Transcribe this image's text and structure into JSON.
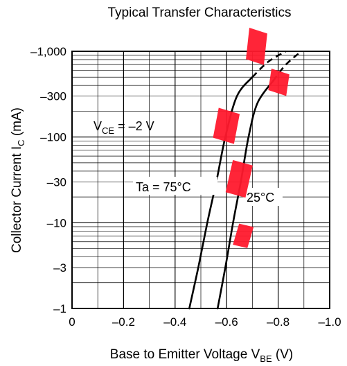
{
  "chart_data": {
    "type": "line",
    "title": "Typical Transfer Characteristics",
    "xlabel": {
      "main": "Base to Emitter Voltage  V",
      "sub": "BE",
      "unit": "  (V)"
    },
    "ylabel": {
      "main": "Collector Current  I",
      "sub": "C",
      "unit": "  (mA)"
    },
    "x_scale": "linear",
    "y_scale": "log",
    "xlim": [
      0,
      -1.0
    ],
    "ylim": [
      -1,
      -1000
    ],
    "x_ticks": [
      {
        "value": 0,
        "label": "0"
      },
      {
        "value": -0.2,
        "label": "–0.2"
      },
      {
        "value": -0.4,
        "label": "–0.4"
      },
      {
        "value": -0.6,
        "label": "–0.6"
      },
      {
        "value": -0.8,
        "label": "–0.8"
      },
      {
        "value": -1.0,
        "label": "–1.0"
      }
    ],
    "y_ticks": [
      {
        "value": -1,
        "label": "–1"
      },
      {
        "value": -3,
        "label": "–3"
      },
      {
        "value": -10,
        "label": "–10"
      },
      {
        "value": -30,
        "label": "–30"
      },
      {
        "value": -100,
        "label": "–100"
      },
      {
        "value": -300,
        "label": "–300"
      },
      {
        "value": -1000,
        "label": "–1,000"
      }
    ],
    "grid": true,
    "condition": {
      "prefix": "V",
      "sub": "CE",
      "text": " = –2 V"
    },
    "series": [
      {
        "name": "Ta = 75°C",
        "solid": [
          {
            "x": -0.455,
            "y": -1
          },
          {
            "x": -0.49,
            "y": -3
          },
          {
            "x": -0.525,
            "y": -10
          },
          {
            "x": -0.56,
            "y": -30
          },
          {
            "x": -0.595,
            "y": -100
          },
          {
            "x": -0.64,
            "y": -300
          },
          {
            "x": -0.7,
            "y": -500
          }
        ],
        "dashed": [
          {
            "x": -0.7,
            "y": -500
          },
          {
            "x": -0.76,
            "y": -750
          },
          {
            "x": -0.83,
            "y": -1000
          }
        ]
      },
      {
        "name": "25°C",
        "solid": [
          {
            "x": -0.565,
            "y": -1
          },
          {
            "x": -0.595,
            "y": -3
          },
          {
            "x": -0.625,
            "y": -10
          },
          {
            "x": -0.655,
            "y": -30
          },
          {
            "x": -0.685,
            "y": -100
          },
          {
            "x": -0.72,
            "y": -250
          },
          {
            "x": -0.78,
            "y": -450
          }
        ],
        "dashed": [
          {
            "x": -0.78,
            "y": -450
          },
          {
            "x": -0.83,
            "y": -700
          },
          {
            "x": -0.89,
            "y": -1000
          }
        ]
      }
    ]
  }
}
